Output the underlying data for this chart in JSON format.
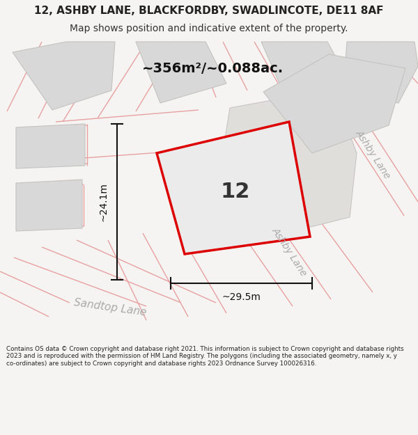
{
  "title_line1": "12, ASHBY LANE, BLACKFORDBY, SWADLINCOTE, DE11 8AF",
  "title_line2": "Map shows position and indicative extent of the property.",
  "area_label": "~356m²/~0.088ac.",
  "plot_number": "12",
  "dim_width": "~29.5m",
  "dim_height": "~24.1m",
  "footer_text": "Contains OS data © Crown copyright and database right 2021. This information is subject to Crown copyright and database rights 2023 and is reproduced with the permission of HM Land Registry. The polygons (including the associated geometry, namely x, y co-ordinates) are subject to Crown copyright and database rights 2023 Ordnance Survey 100026316.",
  "bg_color": "#f5f4f2",
  "map_bg": "#edecea",
  "plot_fill": "#e8e8e8",
  "plot_edge": "#dd0000",
  "faint_line_color": "#e8a0a0",
  "gray_fill": "#d8d8d8",
  "street_label_color": "#aaaaaa",
  "title_bg": "#ffffff",
  "footer_bg": "#ffffff",
  "dim_color": "#111111",
  "title_fontsize": 11,
  "subtitle_fontsize": 10,
  "area_fontsize": 14,
  "number_fontsize": 22,
  "dim_fontsize": 10,
  "street_fontsize": 10,
  "footer_fontsize": 6.3,
  "sandtop_fontsize": 11
}
